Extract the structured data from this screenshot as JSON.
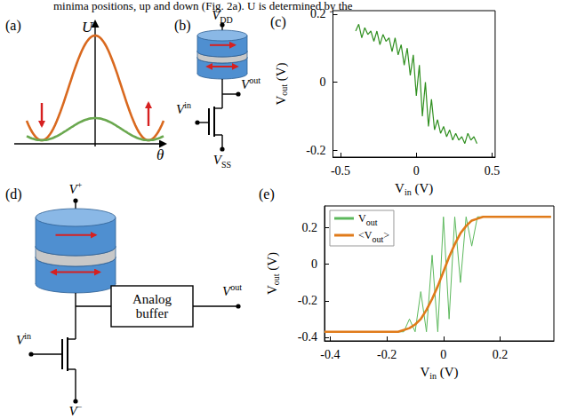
{
  "text_line": "minima positions, up and down (Fig. 2a). U is determined by the",
  "panels": {
    "a": {
      "letter": "(a)",
      "y_label": "U",
      "x_label": "θ"
    },
    "b": {
      "letter": "(b)",
      "labels": {
        "top": "VDD",
        "gate": "Vin",
        "out": "Vout",
        "bottom": "VSS"
      }
    },
    "c": {
      "letter": "(c)"
    },
    "d": {
      "letter": "(d)",
      "labels": {
        "top": "V+",
        "gate": "Vin",
        "out": "Vout",
        "bottom": "V−",
        "buffer": "Analog buffer"
      }
    },
    "e": {
      "letter": "(e)"
    }
  },
  "chart_data": [
    {
      "type": "line",
      "xlabel": "Vin (V)",
      "ylabel": "Vout (V)",
      "xlim": [
        -0.55,
        0.52
      ],
      "ylim": [
        -0.22,
        0.21
      ],
      "xticks": [
        -0.5,
        0,
        0.5
      ],
      "yticks": [
        -0.2,
        0,
        0.2
      ],
      "grid": false,
      "x": [
        -0.4,
        -0.38,
        -0.36,
        -0.34,
        -0.32,
        -0.3,
        -0.28,
        -0.26,
        -0.24,
        -0.22,
        -0.2,
        -0.18,
        -0.16,
        -0.14,
        -0.12,
        -0.1,
        -0.08,
        -0.06,
        -0.04,
        -0.02,
        0,
        0.02,
        0.04,
        0.06,
        0.08,
        0.1,
        0.12,
        0.14,
        0.16,
        0.18,
        0.2,
        0.22,
        0.24,
        0.26,
        0.28,
        0.3,
        0.32,
        0.34,
        0.36,
        0.38,
        0.4
      ],
      "series": [
        {
          "color": "#2f8f1f",
          "values": [
            0.15,
            0.17,
            0.13,
            0.16,
            0.14,
            0.15,
            0.12,
            0.15,
            0.11,
            0.14,
            0.12,
            0.13,
            0.09,
            0.13,
            0.08,
            0.11,
            0.05,
            0.1,
            0.02,
            0.08,
            -0.04,
            0.05,
            -0.1,
            0.0,
            -0.13,
            -0.05,
            -0.14,
            -0.11,
            -0.15,
            -0.13,
            -0.16,
            -0.14,
            -0.17,
            -0.15,
            -0.17,
            -0.16,
            -0.18,
            -0.15,
            -0.17,
            -0.16,
            -0.18
          ]
        }
      ]
    },
    {
      "type": "line",
      "xlabel": "Vin (V)",
      "ylabel": "Vout (V)",
      "xlim": [
        -0.42,
        0.39
      ],
      "ylim": [
        -0.42,
        0.32
      ],
      "xticks": [
        -0.4,
        -0.2,
        0,
        0.2
      ],
      "yticks": [
        -0.4,
        -0.2,
        0,
        0.2
      ],
      "grid": false,
      "legend": "upper left",
      "x": [
        -0.42,
        -0.4,
        -0.38,
        -0.36,
        -0.34,
        -0.32,
        -0.3,
        -0.28,
        -0.26,
        -0.24,
        -0.22,
        -0.2,
        -0.18,
        -0.16,
        -0.14,
        -0.12,
        -0.1,
        -0.08,
        -0.06,
        -0.04,
        -0.02,
        0,
        0.02,
        0.04,
        0.06,
        0.08,
        0.1,
        0.12,
        0.14,
        0.16,
        0.18,
        0.2,
        0.22,
        0.24,
        0.26,
        0.28,
        0.3,
        0.32,
        0.34,
        0.36,
        0.38
      ],
      "series": [
        {
          "name": "Vout",
          "color": "#5cb85c",
          "values": [
            -0.37,
            -0.37,
            -0.37,
            -0.37,
            -0.37,
            -0.37,
            -0.37,
            -0.37,
            -0.37,
            -0.37,
            -0.37,
            -0.37,
            -0.37,
            -0.37,
            -0.37,
            -0.3,
            -0.37,
            -0.15,
            -0.37,
            0.05,
            -0.37,
            0.26,
            -0.3,
            0.26,
            -0.1,
            0.26,
            0.1,
            0.26,
            0.26,
            0.26,
            0.26,
            0.26,
            0.26,
            0.26,
            0.26,
            0.26,
            0.26,
            0.26,
            0.26,
            0.26,
            0.26
          ]
        },
        {
          "name": "<Vout>",
          "color": "#e07b1a",
          "values": [
            -0.37,
            -0.37,
            -0.37,
            -0.37,
            -0.37,
            -0.37,
            -0.37,
            -0.37,
            -0.37,
            -0.37,
            -0.37,
            -0.37,
            -0.37,
            -0.37,
            -0.36,
            -0.35,
            -0.33,
            -0.3,
            -0.25,
            -0.19,
            -0.12,
            -0.04,
            0.04,
            0.11,
            0.17,
            0.21,
            0.24,
            0.25,
            0.26,
            0.26,
            0.26,
            0.26,
            0.26,
            0.26,
            0.26,
            0.26,
            0.26,
            0.26,
            0.26,
            0.26,
            0.26
          ]
        }
      ]
    }
  ]
}
